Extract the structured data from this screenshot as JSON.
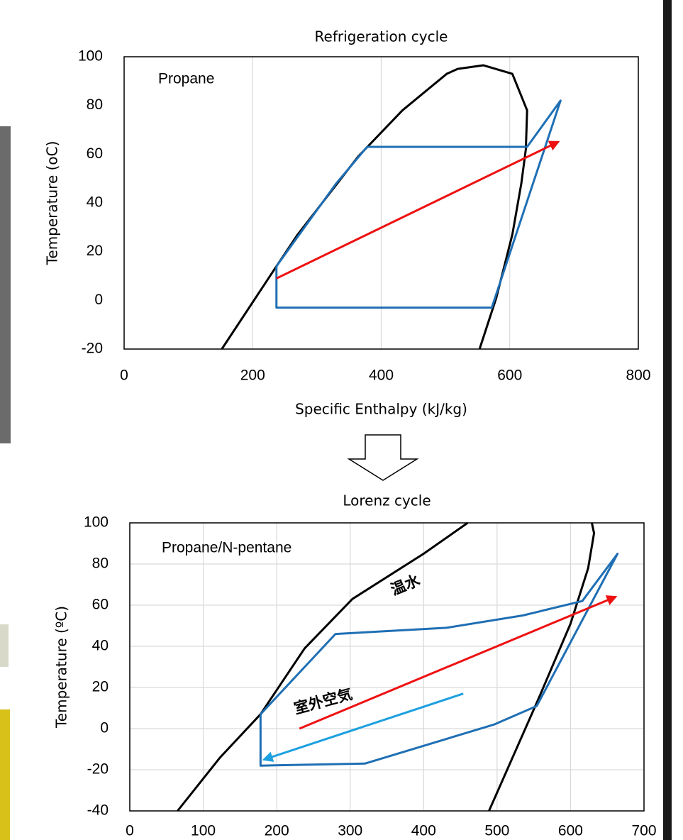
{
  "chart_data": [
    {
      "type": "line",
      "title": "Refrigeration cycle",
      "xlabel": "Specific Enthalpy (kJ/kg)",
      "ylabel": "Temperature (oC)",
      "xlim": [
        0,
        800
      ],
      "ylim": [
        -20,
        100
      ],
      "xticks": [
        0,
        200,
        400,
        600,
        800
      ],
      "yticks": [
        -20,
        0,
        20,
        40,
        60,
        80,
        100
      ],
      "grid": "x",
      "annotations": [
        {
          "text": "Propane",
          "color": "#000000"
        }
      ],
      "series": [
        {
          "color": "#000000",
          "x": [
            152,
            237,
            270,
            364,
            433,
            502,
            519,
            559,
            604,
            627,
            625,
            618,
            604,
            579,
            553
          ],
          "values": [
            -20,
            14,
            27,
            59,
            78,
            93,
            95,
            96.5,
            93,
            78,
            62,
            48,
            27,
            1,
            -20
          ]
        },
        {
          "color": "#1f6fb4",
          "x": [
            237,
            237,
            572,
            679,
            627,
            378,
            330,
            237
          ],
          "values": [
            14,
            -3,
            -3,
            82,
            63,
            63,
            48,
            14
          ]
        },
        {
          "color": "#ee1111",
          "arrow": true,
          "x": [
            237,
            675
          ],
          "values": [
            9,
            65
          ]
        }
      ]
    },
    {
      "type": "line",
      "title": "Lorenz cycle",
      "ylabel": "Temperature (ºC)",
      "xlim": [
        0,
        700
      ],
      "ylim": [
        -40,
        100
      ],
      "xticks": [
        0,
        100,
        200,
        300,
        400,
        500,
        600,
        700
      ],
      "yticks": [
        -40,
        -20,
        0,
        20,
        40,
        60,
        80,
        100
      ],
      "grid": "both",
      "annotations": [
        {
          "text": "Propane/N-pentane",
          "color": "#000000"
        },
        {
          "text": "温水",
          "color": "#ee1111"
        },
        {
          "text": "室外空気",
          "color": "#1ca0e0"
        }
      ],
      "series": [
        {
          "color": "#000000",
          "x": [
            65,
            123,
            178,
            238,
            303,
            400,
            460
          ],
          "values": [
            -40,
            -14,
            7,
            39,
            63,
            85,
            100
          ]
        },
        {
          "color": "#000000",
          "x": [
            489,
            557,
            600,
            624,
            632,
            629
          ],
          "values": [
            -40,
            15,
            51,
            78,
            95,
            100
          ]
        },
        {
          "color": "#1f6fb4",
          "x": [
            178,
            178,
            320,
            496,
            554,
            664,
            616,
            535,
            431,
            280,
            178
          ],
          "values": [
            7,
            -18,
            -17,
            2,
            11,
            85,
            62,
            55,
            49,
            46,
            7
          ]
        },
        {
          "color": "#ee1111",
          "arrow": true,
          "x": [
            231,
            661
          ],
          "values": [
            0,
            64
          ]
        },
        {
          "color": "#1ca0e0",
          "arrow": true,
          "x": [
            454,
            183
          ],
          "values": [
            17,
            -15
          ]
        }
      ]
    }
  ]
}
